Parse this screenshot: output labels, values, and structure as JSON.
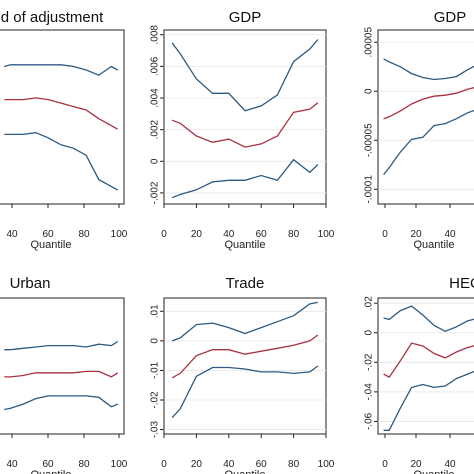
{
  "colors": {
    "band": "#2c5a80",
    "estimate": "#a83240",
    "panel_bg": "#ffffff",
    "frame": "#222222"
  },
  "chart_data": [
    {
      "type": "line",
      "title": "d of adjustment",
      "xlabel": "Quantile",
      "x_ticks": [
        "40",
        "60",
        "80",
        "100"
      ],
      "y_ticks": [],
      "xlim": [
        0,
        100
      ],
      "ylim": [
        0,
        1
      ],
      "series": [
        {
          "x": [
            5,
            10,
            20,
            30,
            40,
            50,
            60,
            70,
            80,
            90,
            95
          ],
          "values": [
            0.79,
            0.8,
            0.8,
            0.8,
            0.8,
            0.8,
            0.79,
            0.77,
            0.74,
            0.79,
            0.77
          ]
        },
        {
          "x": [
            5,
            10,
            20,
            30,
            40,
            50,
            60,
            70,
            80,
            90,
            95
          ],
          "values": [
            0.6,
            0.6,
            0.6,
            0.61,
            0.6,
            0.58,
            0.56,
            0.54,
            0.49,
            0.45,
            0.43
          ]
        },
        {
          "x": [
            5,
            10,
            20,
            30,
            40,
            50,
            60,
            70,
            80,
            90,
            95
          ],
          "values": [
            0.4,
            0.4,
            0.4,
            0.41,
            0.38,
            0.34,
            0.32,
            0.28,
            0.14,
            0.1,
            0.08
          ]
        }
      ]
    },
    {
      "type": "line",
      "title": "GDP",
      "xlabel": "Quantile",
      "x_ticks": [
        "0",
        "20",
        "40",
        "60",
        "80",
        "100"
      ],
      "y_ticks": [
        "-.002",
        "0",
        ".002",
        ".004",
        ".006",
        ".008"
      ],
      "xlim": [
        0,
        100
      ],
      "ylim": [
        -0.0027,
        0.0083
      ],
      "series": [
        {
          "x": [
            5,
            10,
            20,
            30,
            40,
            50,
            60,
            70,
            80,
            90,
            95
          ],
          "values": [
            0.0075,
            0.0068,
            0.0052,
            0.0043,
            0.0043,
            0.0032,
            0.0035,
            0.0042,
            0.0063,
            0.0071,
            0.0077
          ]
        },
        {
          "x": [
            5,
            10,
            20,
            30,
            40,
            50,
            60,
            70,
            80,
            90,
            95
          ],
          "values": [
            0.0026,
            0.0024,
            0.0016,
            0.0012,
            0.0014,
            0.0009,
            0.0011,
            0.0016,
            0.0031,
            0.0033,
            0.0037
          ]
        },
        {
          "x": [
            5,
            10,
            20,
            30,
            40,
            50,
            60,
            70,
            80,
            90,
            95
          ],
          "values": [
            -0.0023,
            -0.0021,
            -0.0018,
            -0.0013,
            -0.0012,
            -0.0012,
            -0.0009,
            -0.0012,
            0.0001,
            -0.0007,
            -0.0002
          ]
        }
      ]
    },
    {
      "type": "line",
      "title": "GDP",
      "xlabel": "Quantile",
      "x_ticks": [
        "0",
        "20",
        "40"
      ],
      "y_ticks": [
        "-.0001",
        "-.00005",
        "0",
        ".00005"
      ],
      "xlim": [
        0,
        100
      ],
      "ylim": [
        -0.000115,
        6.25e-05
      ],
      "series": [
        {
          "x": [
            5,
            10,
            20,
            30,
            40,
            50,
            60,
            70,
            80,
            90,
            95
          ],
          "values": [
            3.3e-05,
            3e-05,
            2.5e-05,
            1.8e-05,
            1.4e-05,
            1.2e-05,
            1.3e-05,
            1.5e-05,
            2.2e-05,
            2.8e-05,
            3.2e-05
          ]
        },
        {
          "x": [
            5,
            10,
            20,
            30,
            40,
            50,
            60,
            70,
            80,
            90,
            95
          ],
          "values": [
            -2.8e-05,
            -2.6e-05,
            -2e-05,
            -1.3e-05,
            -8e-06,
            -5e-06,
            -4e-06,
            -2e-06,
            2e-06,
            5e-06,
            6e-06
          ]
        },
        {
          "x": [
            5,
            10,
            20,
            30,
            40,
            50,
            60,
            70,
            80,
            90,
            95
          ],
          "values": [
            -8.5e-05,
            -7.8e-05,
            -6.2e-05,
            -4.9e-05,
            -4.7e-05,
            -3.5e-05,
            -3.3e-05,
            -2.8e-05,
            -2.2e-05,
            -1.8e-05,
            -1.5e-05
          ]
        }
      ]
    },
    {
      "type": "line",
      "title": "Urban",
      "xlabel": "Quantile",
      "x_ticks": [
        "40",
        "60",
        "80",
        "100"
      ],
      "y_ticks": [],
      "xlim": [
        0,
        100
      ],
      "ylim": [
        0,
        1
      ],
      "series": [
        {
          "x": [
            5,
            10,
            20,
            30,
            40,
            50,
            60,
            70,
            80,
            90,
            95
          ],
          "values": [
            0.62,
            0.62,
            0.63,
            0.64,
            0.65,
            0.65,
            0.65,
            0.64,
            0.66,
            0.65,
            0.68
          ]
        },
        {
          "x": [
            5,
            10,
            20,
            30,
            40,
            50,
            60,
            70,
            80,
            90,
            95
          ],
          "values": [
            0.42,
            0.42,
            0.43,
            0.45,
            0.45,
            0.45,
            0.45,
            0.46,
            0.46,
            0.42,
            0.45
          ]
        },
        {
          "x": [
            5,
            10,
            20,
            30,
            40,
            50,
            60,
            70,
            80,
            90,
            95
          ],
          "values": [
            0.18,
            0.19,
            0.22,
            0.26,
            0.28,
            0.28,
            0.28,
            0.28,
            0.27,
            0.2,
            0.22
          ]
        }
      ]
    },
    {
      "type": "line",
      "title": "Trade",
      "xlabel": "Quantile",
      "x_ticks": [
        "0",
        "20",
        "40",
        "60",
        "80",
        "100"
      ],
      "y_ticks": [
        "-.03",
        "-.02",
        "-.01",
        "0",
        ".01"
      ],
      "xlim": [
        0,
        100
      ],
      "ylim": [
        -0.0315,
        0.0145
      ],
      "series": [
        {
          "x": [
            5,
            10,
            20,
            30,
            40,
            50,
            60,
            70,
            80,
            90,
            95
          ],
          "values": [
            0.0,
            0.001,
            0.0055,
            0.006,
            0.0045,
            0.0025,
            0.0045,
            0.0065,
            0.0085,
            0.0125,
            0.013
          ]
        },
        {
          "x": [
            5,
            10,
            20,
            30,
            40,
            50,
            60,
            70,
            80,
            90,
            95
          ],
          "values": [
            -0.0125,
            -0.011,
            -0.005,
            -0.003,
            -0.003,
            -0.0045,
            -0.0035,
            -0.0025,
            -0.0015,
            0.0,
            0.002
          ]
        },
        {
          "x": [
            5,
            10,
            20,
            30,
            40,
            50,
            60,
            70,
            80,
            90,
            95
          ],
          "values": [
            -0.026,
            -0.023,
            -0.012,
            -0.009,
            -0.009,
            -0.0095,
            -0.0105,
            -0.0105,
            -0.011,
            -0.0105,
            -0.0085
          ]
        }
      ]
    },
    {
      "type": "line",
      "title": "HEC",
      "xlabel": "Quantile",
      "x_ticks": [
        "0",
        "20",
        "40"
      ],
      "y_ticks": [
        "-.06",
        "-.04",
        "-.02",
        "0",
        ".02"
      ],
      "xlim": [
        0,
        100
      ],
      "ylim": [
        -0.0685,
        0.0235
      ],
      "series": [
        {
          "x": [
            5,
            10,
            20,
            30,
            40,
            50,
            60,
            70,
            80,
            90,
            95
          ],
          "values": [
            0.01,
            0.009,
            0.015,
            0.018,
            0.012,
            0.005,
            0.001,
            0.004,
            0.008,
            0.01,
            0.012
          ]
        },
        {
          "x": [
            5,
            10,
            20,
            30,
            40,
            50,
            60,
            70,
            80,
            90,
            95
          ],
          "values": [
            -0.028,
            -0.03,
            -0.019,
            -0.007,
            -0.009,
            -0.014,
            -0.017,
            -0.013,
            -0.01,
            -0.008,
            -0.006
          ]
        },
        {
          "x": [
            5,
            10,
            20,
            30,
            40,
            50,
            60,
            70,
            80,
            90,
            95
          ],
          "values": [
            -0.066,
            -0.066,
            -0.051,
            -0.037,
            -0.035,
            -0.037,
            -0.036,
            -0.031,
            -0.028,
            -0.025,
            -0.022
          ]
        }
      ]
    }
  ]
}
